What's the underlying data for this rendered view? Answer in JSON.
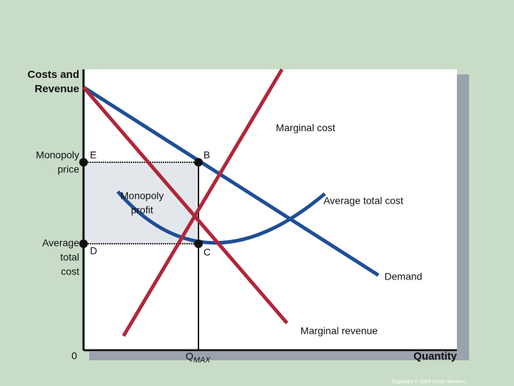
{
  "axes": {
    "y_label": [
      "Costs and",
      "Revenue"
    ],
    "x_label": "Quantity",
    "origin": "0",
    "q_symbol": "Q",
    "q_subscript": "MAX"
  },
  "price_labels": {
    "monopoly_price": [
      "Monopoly",
      "price"
    ],
    "average_total_cost": [
      "Average",
      "total",
      "cost"
    ]
  },
  "points": {
    "e": "E",
    "b": "B",
    "d": "D",
    "c": "C"
  },
  "area_label": [
    "Monopoly",
    "profit"
  ],
  "curves": {
    "marginal_cost": "Marginal cost",
    "average_total_cost": "Average total cost",
    "demand": "Demand",
    "marginal_revenue": "Marginal revenue"
  },
  "footer": {
    "copyright": "Copyright © 2004 South-Western"
  }
}
